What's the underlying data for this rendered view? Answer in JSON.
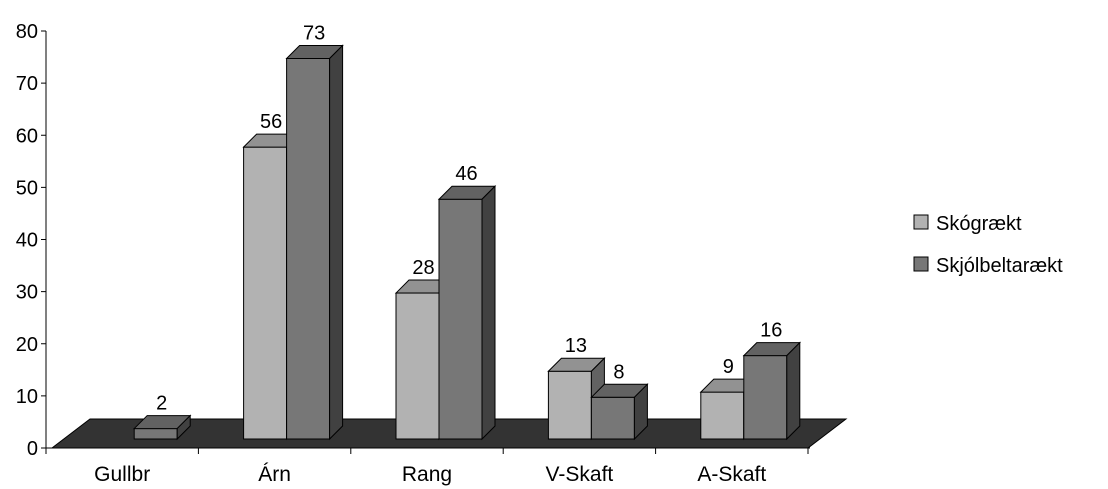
{
  "chart_data": {
    "type": "bar",
    "title": "",
    "xlabel": "",
    "ylabel": "",
    "categories": [
      "Gullbr",
      "Árn",
      "Rang",
      "V-Skaft",
      "A-Skaft"
    ],
    "series": [
      {
        "name": "Skógrækt",
        "values": [
          0,
          56,
          28,
          13,
          9
        ],
        "labels": [
          "",
          "56",
          "28",
          "13",
          "9"
        ],
        "color": "#b2b2b2"
      },
      {
        "name": "Skjólbeltarækt",
        "values": [
          2,
          73,
          46,
          8,
          16
        ],
        "labels": [
          "2",
          "73",
          "46",
          "8",
          "16"
        ],
        "color": "#777777"
      }
    ],
    "ylim": [
      0,
      80
    ],
    "yticks": [
      "0",
      "10",
      "20",
      "30",
      "40",
      "50",
      "60",
      "70",
      "80"
    ],
    "grid": false,
    "legend_position": "right",
    "floor_color": "#333333",
    "bar_3d": true
  }
}
